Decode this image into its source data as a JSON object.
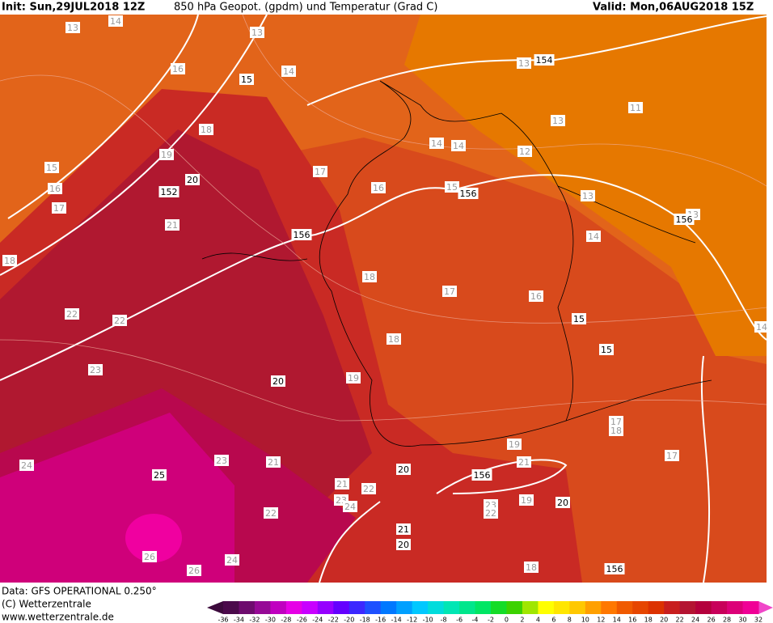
{
  "header": {
    "init": "Init: Sun,29JUL2018 12Z",
    "title": "850 hPa Geopot. (gpdm) und Temperatur (Grad C)",
    "valid": "Valid: Mon,06AUG2018 15Z"
  },
  "footer": {
    "data": "Data: GFS OPERATIONAL 0.250°",
    "copyright": "(C) Wetterzentrale",
    "url": "www.wetterzentrale.de"
  },
  "legend": {
    "ticks": [
      -36,
      -34,
      -32,
      -30,
      -28,
      -26,
      -24,
      -22,
      -20,
      -18,
      -16,
      -14,
      -12,
      -10,
      -8,
      -6,
      -4,
      -2,
      0,
      2,
      4,
      6,
      8,
      10,
      12,
      14,
      16,
      18,
      20,
      22,
      24,
      26,
      28,
      30,
      32
    ],
    "colors": [
      "#4b0a4b",
      "#6e0c6e",
      "#960a96",
      "#c000c0",
      "#e600e6",
      "#c800ff",
      "#9600ff",
      "#6400ff",
      "#3c28ff",
      "#1e50ff",
      "#0078ff",
      "#00a0ff",
      "#00c8ff",
      "#00dcdc",
      "#00e6b4",
      "#00e68c",
      "#00e664",
      "#14dc28",
      "#3cd200",
      "#a0e600",
      "#ffff00",
      "#ffe600",
      "#ffc800",
      "#ffa000",
      "#ff7800",
      "#f05a00",
      "#e64600",
      "#dc3200",
      "#c81e1e",
      "#b41432",
      "#b4003c",
      "#c8005a",
      "#dc0078",
      "#f00096"
    ]
  },
  "temperature_labels": [
    13,
    14,
    13,
    16,
    14,
    13,
    11,
    13,
    18,
    19,
    14,
    14,
    12,
    17,
    15,
    16,
    16,
    15,
    17,
    13,
    21,
    14,
    18,
    18,
    17,
    16,
    22,
    22,
    18,
    23,
    19,
    17,
    18,
    19,
    17,
    24,
    23,
    21,
    21,
    21,
    22,
    22,
    23,
    24,
    19,
    23,
    22,
    26,
    26,
    24,
    18,
    13,
    14
  ],
  "geopotential_labels": [
    154,
    15,
    152,
    20,
    156,
    156,
    156,
    15,
    15,
    20,
    20,
    156,
    25,
    20,
    21,
    20,
    156
  ]
}
